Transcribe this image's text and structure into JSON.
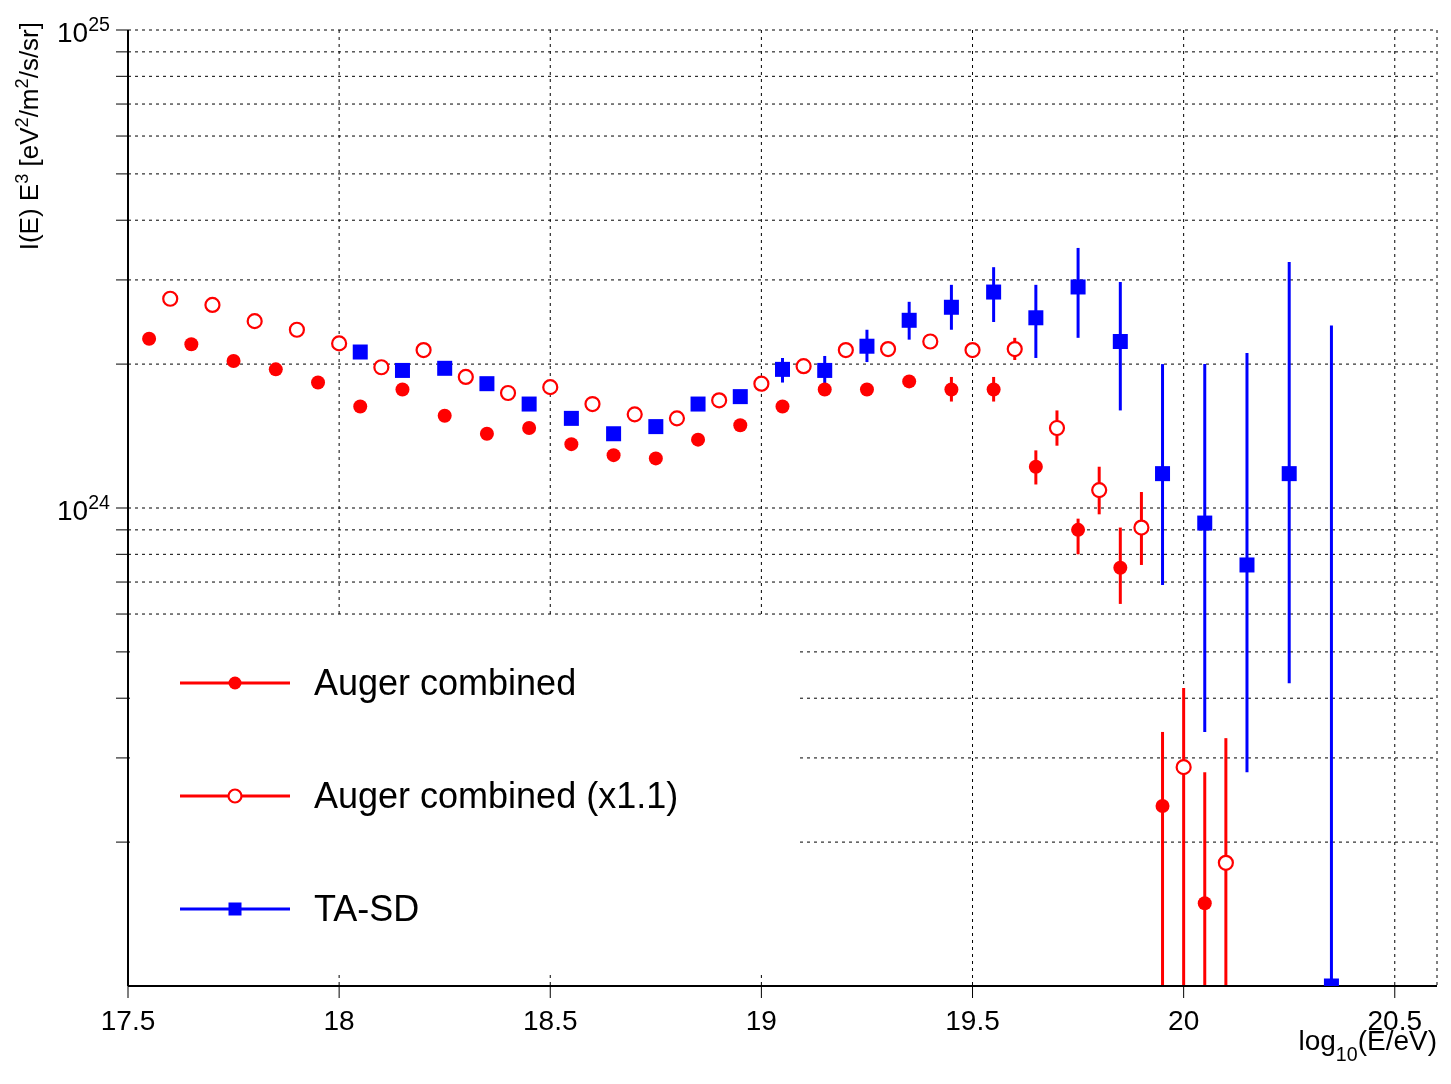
{
  "chart_data": {
    "type": "scatter",
    "xlabel": "log$_{10}$(E/eV)",
    "ylabel": "I(E) E$^{3}$ [eV$^{2}$/m$^{2}$/s/sr]",
    "log": "y",
    "grid": true,
    "legend": "bottom left",
    "xlim": [
      17.5,
      20.6
    ],
    "xticks": [
      17.5,
      18,
      18.5,
      19,
      19.5,
      20,
      20.5
    ],
    "ylim": [
      1e+23,
      1e+25
    ],
    "yticks": [
      {
        "value": 2e+23,
        "label": null
      },
      {
        "value": 3e+23,
        "label": null
      },
      {
        "value": 4e+23,
        "label": null
      },
      {
        "value": 5e+23,
        "label": null
      },
      {
        "value": 6e+23,
        "label": null
      },
      {
        "value": 7e+23,
        "label": null
      },
      {
        "value": 8e+23,
        "label": null
      },
      {
        "value": 9e+23,
        "label": null
      },
      {
        "value": 1e+24,
        "label": "10$^{24}$"
      },
      {
        "value": 2e+24,
        "label": null
      },
      {
        "value": 3e+24,
        "label": null
      },
      {
        "value": 4e+24,
        "label": null
      },
      {
        "value": 5e+24,
        "label": null
      },
      {
        "value": 6e+24,
        "label": null
      },
      {
        "value": 7e+24,
        "label": null
      },
      {
        "value": 8e+24,
        "label": null
      },
      {
        "value": 9e+24,
        "label": null
      },
      {
        "value": 1e+25,
        "label": "10$^{25}$"
      }
    ],
    "series": [
      {
        "name": "Auger combined",
        "color": "#ff0000",
        "marker": "circle",
        "x": [
          17.55,
          17.65,
          17.75,
          17.85,
          17.95,
          18.05,
          18.15,
          18.25,
          18.35,
          18.45,
          18.55,
          18.65,
          18.75,
          18.85,
          18.95,
          19.05,
          19.15,
          19.25,
          19.35,
          19.45,
          19.55,
          19.65,
          19.75,
          19.85,
          19.95,
          20.05
        ],
        "values": [
          2.26e+24,
          2.2e+24,
          2.03e+24,
          1.95e+24,
          1.83e+24,
          1.63e+24,
          1.77e+24,
          1.56e+24,
          1.43e+24,
          1.47e+24,
          1.36e+24,
          1.29e+24,
          1.27e+24,
          1.39e+24,
          1.49e+24,
          1.63e+24,
          1.77e+24,
          1.77e+24,
          1.84e+24,
          1.77e+24,
          1.77e+24,
          1.22e+24,
          9e+23,
          7.5e+23,
          2.38e+23,
          1.49e+23
        ],
        "errors": [
          null,
          null,
          null,
          null,
          null,
          null,
          null,
          null,
          null,
          null,
          null,
          null,
          null,
          null,
          null,
          null,
          null,
          null,
          null,
          [
            1.67e+24,
            1.88e+24
          ],
          [
            1.67e+24,
            1.88e+24
          ],
          [
            1.12e+24,
            1.32e+24
          ],
          [
            8e+23,
            9.5e+23
          ],
          [
            6.3e+23,
            9.1e+23
          ],
          [
            1e+23,
            3.4e+23
          ],
          [
            1e+23,
            2.8e+23
          ]
        ]
      },
      {
        "name": "Auger combined (x1.1)",
        "color": "#ff0000",
        "marker": "circle",
        "x": [
          17.6,
          17.7,
          17.8,
          17.9,
          18.0,
          18.1,
          18.2,
          18.3,
          18.4,
          18.5,
          18.6,
          18.7,
          18.8,
          18.9,
          19.0,
          19.1,
          19.2,
          19.3,
          19.4,
          19.5,
          19.6,
          19.7,
          19.8,
          19.9,
          20.0,
          20.1
        ],
        "values": [
          2.74e+24,
          2.66e+24,
          2.46e+24,
          2.36e+24,
          2.21e+24,
          1.97e+24,
          2.14e+24,
          1.88e+24,
          1.74e+24,
          1.79e+24,
          1.65e+24,
          1.57e+24,
          1.54e+24,
          1.68e+24,
          1.82e+24,
          1.98e+24,
          2.14e+24,
          2.15e+24,
          2.23e+24,
          2.14e+24,
          2.15e+24,
          1.47e+24,
          1.09e+24,
          9.1e+23,
          2.87e+23,
          1.81e+23
        ],
        "errors": [
          null,
          null,
          null,
          null,
          null,
          null,
          null,
          null,
          null,
          null,
          null,
          null,
          null,
          null,
          null,
          null,
          null,
          null,
          null,
          null,
          [
            2.04e+24,
            2.27e+24
          ],
          [
            1.35e+24,
            1.6e+24
          ],
          [
            9.7e+23,
            1.22e+24
          ],
          [
            7.6e+23,
            1.08e+24
          ],
          [
            1e+23,
            4.2e+23
          ],
          [
            1e+23,
            3.3e+23
          ]
        ]
      },
      {
        "name": "TA-SD",
        "color": "#0000ff",
        "marker": "square",
        "x": [
          18.05,
          18.15,
          18.25,
          18.35,
          18.45,
          18.55,
          18.65,
          18.75,
          18.85,
          18.95,
          19.05,
          19.15,
          19.25,
          19.35,
          19.45,
          19.55,
          19.65,
          19.75,
          19.85,
          19.95,
          20.05,
          20.15,
          20.25,
          20.35
        ],
        "values": [
          2.12e+24,
          1.94e+24,
          1.96e+24,
          1.82e+24,
          1.65e+24,
          1.54e+24,
          1.43e+24,
          1.48e+24,
          1.65e+24,
          1.71e+24,
          1.95e+24,
          1.94e+24,
          2.18e+24,
          2.47e+24,
          2.63e+24,
          2.83e+24,
          2.5e+24,
          2.9e+24,
          2.23e+24,
          1.18e+24,
          9.3e+23,
          7.6e+23,
          1.18e+24,
          1e+23
        ],
        "errors": [
          null,
          null,
          null,
          null,
          null,
          null,
          null,
          null,
          null,
          null,
          [
            1.83e+24,
            2.06e+24
          ],
          [
            1.81e+24,
            2.08e+24
          ],
          [
            2.02e+24,
            2.36e+24
          ],
          [
            2.25e+24,
            2.7e+24
          ],
          [
            2.36e+24,
            2.93e+24
          ],
          [
            2.45e+24,
            3.19e+24
          ],
          [
            2.06e+24,
            2.93e+24
          ],
          [
            2.27e+24,
            3.5e+24
          ],
          [
            1.6e+24,
            2.97e+24
          ],
          [
            6.9e+23,
            2e+24
          ],
          [
            3.4e+23,
            2e+24
          ],
          [
            2.8e+23,
            2.11e+24
          ],
          [
            4.3e+23,
            3.27e+24
          ],
          [
            1e+23,
            2.41e+24
          ]
        ]
      }
    ]
  }
}
